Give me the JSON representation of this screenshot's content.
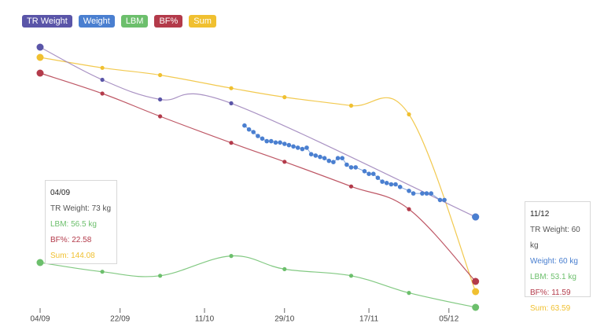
{
  "colors": {
    "tr_weight": "#9a7fb8",
    "weight": "#4a7fd0",
    "lbm": "#6cbf6c",
    "bf": "#b33a4a",
    "sum": "#f0c030",
    "tr_dot": "#5a55a8"
  },
  "chart_data": {
    "type": "line",
    "x_ticks": [
      "04/09",
      "22/09",
      "11/10",
      "29/10",
      "17/11",
      "05/12"
    ],
    "legend": [
      "TR Weight",
      "Weight",
      "LBM",
      "BF%",
      "Sum"
    ],
    "legend_placement": "top-left",
    "grid": false,
    "series": [
      {
        "name": "TR Weight",
        "points": [
          [
            "04/09",
            73
          ],
          [
            "18/09",
            70.5
          ],
          [
            "01/10",
            69
          ],
          [
            "17/10",
            68.7
          ],
          [
            "11/12",
            60
          ]
        ]
      },
      {
        "name": "Weight",
        "points": [
          [
            "20/10",
            67
          ],
          [
            "21/10",
            66.7
          ],
          [
            "22/10",
            66.5
          ],
          [
            "23/10",
            66.2
          ],
          [
            "24/10",
            66
          ],
          [
            "25/10",
            65.8
          ],
          [
            "26/10",
            65.8
          ],
          [
            "27/10",
            65.7
          ],
          [
            "28/10",
            65.7
          ],
          [
            "29/10",
            65.6
          ],
          [
            "30/10",
            65.5
          ],
          [
            "31/10",
            65.4
          ],
          [
            "01/11",
            65.3
          ],
          [
            "02/11",
            65.2
          ],
          [
            "03/11",
            65.3
          ],
          [
            "04/11",
            64.8
          ],
          [
            "05/11",
            64.7
          ],
          [
            "06/11",
            64.6
          ],
          [
            "07/11",
            64.5
          ],
          [
            "08/11",
            64.3
          ],
          [
            "09/11",
            64.2
          ],
          [
            "10/11",
            64.5
          ],
          [
            "11/11",
            64.5
          ],
          [
            "12/11",
            64
          ],
          [
            "13/11",
            63.8
          ],
          [
            "14/11",
            63.8
          ],
          [
            "16/11",
            63.5
          ],
          [
            "17/11",
            63.3
          ],
          [
            "18/11",
            63.3
          ],
          [
            "19/11",
            63
          ],
          [
            "20/11",
            62.7
          ],
          [
            "21/11",
            62.6
          ],
          [
            "22/11",
            62.5
          ],
          [
            "23/11",
            62.5
          ],
          [
            "24/11",
            62.3
          ],
          [
            "26/11",
            62
          ],
          [
            "27/11",
            61.8
          ],
          [
            "29/11",
            61.8
          ],
          [
            "30/11",
            61.8
          ],
          [
            "01/12",
            61.8
          ],
          [
            "03/12",
            61.3
          ],
          [
            "04/12",
            61.3
          ],
          [
            "11/12",
            60
          ]
        ]
      },
      {
        "name": "LBM",
        "points": [
          [
            "04/09",
            56.5
          ],
          [
            "18/09",
            55.8
          ],
          [
            "01/10",
            55.5
          ],
          [
            "17/10",
            57
          ],
          [
            "29/10",
            56
          ],
          [
            "13/11",
            55.5
          ],
          [
            "26/11",
            54.2
          ],
          [
            "11/12",
            53.1
          ]
        ]
      },
      {
        "name": "BF%",
        "points": [
          [
            "04/09",
            22.58
          ],
          [
            "18/09",
            21.5
          ],
          [
            "01/10",
            20.3
          ],
          [
            "17/10",
            18.9
          ],
          [
            "29/10",
            17.9
          ],
          [
            "13/11",
            16.6
          ],
          [
            "26/11",
            15.4
          ],
          [
            "11/12",
            11.59
          ]
        ]
      },
      {
        "name": "Sum",
        "points": [
          [
            "04/09",
            144.08
          ],
          [
            "18/09",
            140.5
          ],
          [
            "01/10",
            138
          ],
          [
            "17/10",
            133.5
          ],
          [
            "29/10",
            130.4
          ],
          [
            "13/11",
            127.5
          ],
          [
            "26/11",
            124.5
          ],
          [
            "11/12",
            63.59
          ]
        ]
      }
    ]
  },
  "tooltips": [
    {
      "title": "04/09",
      "rows": [
        {
          "label": "TR Weight: 73 kg",
          "color": "#555555"
        },
        {
          "label": "LBM: 56.5 kg",
          "color": "#6cbf6c"
        },
        {
          "label": "BF%: 22.58",
          "color": "#b33a4a"
        },
        {
          "label": "Sum: 144.08",
          "color": "#f0c030"
        }
      ]
    },
    {
      "title": "11/12",
      "rows": [
        {
          "label": "TR Weight: 60 kg",
          "color": "#555555"
        },
        {
          "label": "Weight: 60 kg",
          "color": "#4a7fd0"
        },
        {
          "label": "LBM: 53.1 kg",
          "color": "#6cbf6c"
        },
        {
          "label": "BF%: 11.59",
          "color": "#b33a4a"
        },
        {
          "label": "Sum: 63.59",
          "color": "#f0c030"
        }
      ]
    }
  ]
}
